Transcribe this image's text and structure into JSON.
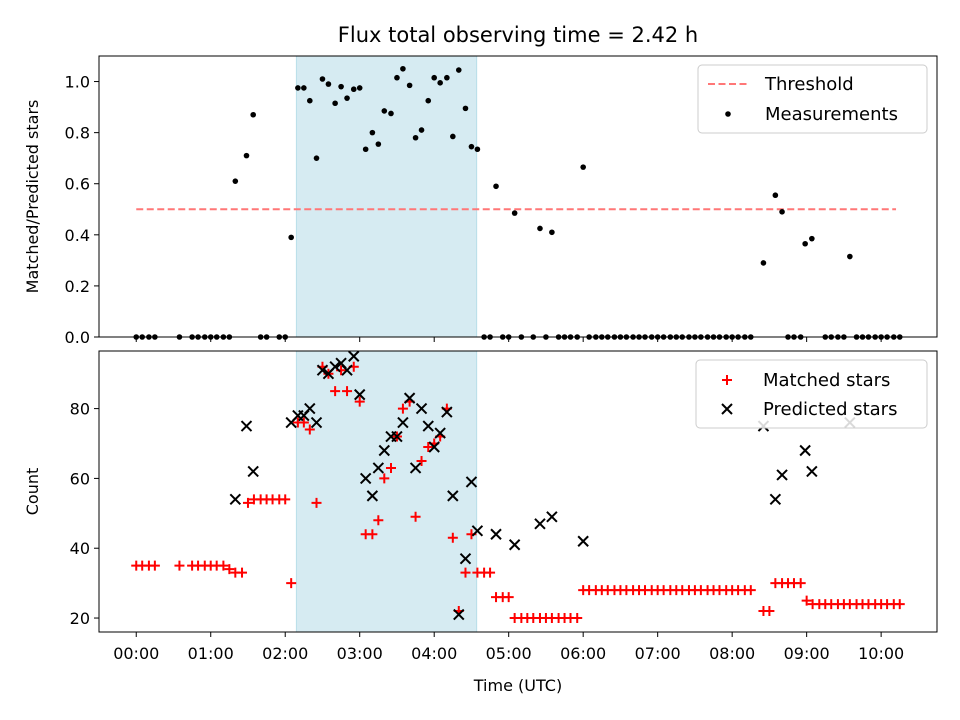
{
  "title": "Flux total observing time = 2.42 h",
  "chart_data": [
    {
      "type": "scatter",
      "name": "ratio",
      "ylabel": "Matched/Predicted stars",
      "xlim": [
        -0.5,
        10.75
      ],
      "ylim": [
        0,
        1.1
      ],
      "yticks": [
        0.0,
        0.2,
        0.4,
        0.6,
        0.8,
        1.0
      ],
      "ytick_labels": [
        "0.0",
        "0.2",
        "0.4",
        "0.6",
        "0.8",
        "1.0"
      ],
      "observing_window": [
        2.15,
        4.57
      ],
      "threshold": {
        "label": "Threshold",
        "value": 0.5,
        "x_range": [
          0.0,
          10.2
        ],
        "color": "#ff7777"
      },
      "measurements": {
        "label": "Measurements",
        "color": "#000000",
        "points": [
          [
            0.0,
            0
          ],
          [
            0.08,
            0
          ],
          [
            0.17,
            0
          ],
          [
            0.25,
            0
          ],
          [
            0.58,
            0
          ],
          [
            0.75,
            0
          ],
          [
            0.83,
            0
          ],
          [
            0.92,
            0
          ],
          [
            1.0,
            0
          ],
          [
            1.08,
            0
          ],
          [
            1.17,
            0
          ],
          [
            1.25,
            0
          ],
          [
            1.33,
            0.61
          ],
          [
            1.48,
            0.71
          ],
          [
            1.57,
            0.87
          ],
          [
            1.67,
            0
          ],
          [
            1.75,
            0
          ],
          [
            1.92,
            0
          ],
          [
            2.0,
            0
          ],
          [
            2.08,
            0.39
          ],
          [
            2.17,
            0.975
          ],
          [
            2.25,
            0.975
          ],
          [
            2.33,
            0.925
          ],
          [
            2.42,
            0.7
          ],
          [
            2.5,
            1.01
          ],
          [
            2.58,
            0.99
          ],
          [
            2.67,
            0.915
          ],
          [
            2.75,
            0.98
          ],
          [
            2.83,
            0.935
          ],
          [
            2.92,
            0.97
          ],
          [
            3.0,
            0.975
          ],
          [
            3.08,
            0.735
          ],
          [
            3.17,
            0.8
          ],
          [
            3.25,
            0.755
          ],
          [
            3.33,
            0.885
          ],
          [
            3.42,
            0.875
          ],
          [
            3.5,
            1.015
          ],
          [
            3.58,
            1.05
          ],
          [
            3.67,
            0.985
          ],
          [
            3.75,
            0.78
          ],
          [
            3.83,
            0.81
          ],
          [
            3.92,
            0.925
          ],
          [
            4.0,
            1.015
          ],
          [
            4.08,
            0.995
          ],
          [
            4.17,
            1.015
          ],
          [
            4.25,
            0.785
          ],
          [
            4.33,
            1.045
          ],
          [
            4.42,
            0.895
          ],
          [
            4.5,
            0.745
          ],
          [
            4.58,
            0.735
          ],
          [
            4.67,
            0
          ],
          [
            4.75,
            0
          ],
          [
            4.83,
            0.59
          ],
          [
            4.92,
            0
          ],
          [
            5.0,
            0
          ],
          [
            5.08,
            0.485
          ],
          [
            5.17,
            0
          ],
          [
            5.33,
            0
          ],
          [
            5.42,
            0.425
          ],
          [
            5.5,
            0
          ],
          [
            5.58,
            0.41
          ],
          [
            5.67,
            0
          ],
          [
            5.75,
            0
          ],
          [
            5.83,
            0
          ],
          [
            5.92,
            0
          ],
          [
            6.0,
            0.665
          ],
          [
            6.08,
            0
          ],
          [
            6.17,
            0
          ],
          [
            6.25,
            0
          ],
          [
            6.33,
            0
          ],
          [
            6.42,
            0
          ],
          [
            6.5,
            0
          ],
          [
            6.58,
            0
          ],
          [
            6.67,
            0
          ],
          [
            6.75,
            0
          ],
          [
            6.83,
            0
          ],
          [
            6.92,
            0
          ],
          [
            7.0,
            0
          ],
          [
            7.08,
            0
          ],
          [
            7.17,
            0
          ],
          [
            7.25,
            0
          ],
          [
            7.33,
            0
          ],
          [
            7.42,
            0
          ],
          [
            7.5,
            0
          ],
          [
            7.58,
            0
          ],
          [
            7.67,
            0
          ],
          [
            7.75,
            0
          ],
          [
            7.83,
            0
          ],
          [
            7.92,
            0
          ],
          [
            8.0,
            0
          ],
          [
            8.08,
            0
          ],
          [
            8.17,
            0
          ],
          [
            8.25,
            0
          ],
          [
            8.42,
            0.29
          ],
          [
            8.58,
            0.555
          ],
          [
            8.67,
            0.49
          ],
          [
            8.75,
            0
          ],
          [
            8.83,
            0
          ],
          [
            8.92,
            0
          ],
          [
            8.98,
            0.365
          ],
          [
            9.07,
            0.385
          ],
          [
            9.25,
            0
          ],
          [
            9.33,
            0
          ],
          [
            9.42,
            0
          ],
          [
            9.5,
            0
          ],
          [
            9.58,
            0.315
          ],
          [
            9.67,
            0
          ],
          [
            9.75,
            0
          ],
          [
            9.83,
            0
          ],
          [
            9.92,
            0
          ],
          [
            10.0,
            0
          ],
          [
            10.08,
            0
          ],
          [
            10.17,
            0
          ],
          [
            10.25,
            0
          ]
        ]
      }
    },
    {
      "type": "scatter",
      "name": "counts",
      "xlabel": "Time (UTC)",
      "ylabel": "Count",
      "xlim": [
        -0.5,
        10.75
      ],
      "ylim": [
        16,
        96.5
      ],
      "yticks": [
        20,
        40,
        60,
        80
      ],
      "ytick_labels": [
        "20",
        "40",
        "60",
        "80"
      ],
      "xticks": [
        0,
        1,
        2,
        3,
        4,
        5,
        6,
        7,
        8,
        9,
        10
      ],
      "xtick_labels": [
        "00:00",
        "01:00",
        "02:00",
        "03:00",
        "04:00",
        "05:00",
        "06:00",
        "07:00",
        "08:00",
        "09:00",
        "10:00"
      ],
      "observing_window": [
        2.15,
        4.57
      ],
      "series": [
        {
          "name": "Matched stars",
          "marker": "+",
          "color": "#ff0000",
          "points": [
            [
              0.0,
              35
            ],
            [
              0.08,
              35
            ],
            [
              0.17,
              35
            ],
            [
              0.25,
              35
            ],
            [
              0.58,
              35
            ],
            [
              0.75,
              35
            ],
            [
              0.83,
              35
            ],
            [
              0.92,
              35
            ],
            [
              1.0,
              35
            ],
            [
              1.08,
              35
            ],
            [
              1.17,
              35
            ],
            [
              1.25,
              34
            ],
            [
              1.33,
              33
            ],
            [
              1.42,
              33
            ],
            [
              1.5,
              53
            ],
            [
              1.58,
              54
            ],
            [
              1.67,
              54
            ],
            [
              1.75,
              54
            ],
            [
              1.83,
              54
            ],
            [
              1.92,
              54
            ],
            [
              2.0,
              54
            ],
            [
              2.08,
              30
            ],
            [
              2.17,
              76
            ],
            [
              2.25,
              76
            ],
            [
              2.33,
              74
            ],
            [
              2.42,
              53
            ],
            [
              2.5,
              92
            ],
            [
              2.58,
              90
            ],
            [
              2.67,
              85
            ],
            [
              2.75,
              91
            ],
            [
              2.83,
              85
            ],
            [
              2.92,
              92
            ],
            [
              3.0,
              82
            ],
            [
              3.08,
              44
            ],
            [
              3.17,
              44
            ],
            [
              3.25,
              48
            ],
            [
              3.33,
              60
            ],
            [
              3.42,
              63
            ],
            [
              3.5,
              72
            ],
            [
              3.58,
              80
            ],
            [
              3.67,
              82
            ],
            [
              3.75,
              49
            ],
            [
              3.83,
              65
            ],
            [
              3.92,
              69
            ],
            [
              4.0,
              70
            ],
            [
              4.08,
              72
            ],
            [
              4.17,
              80
            ],
            [
              4.25,
              43
            ],
            [
              4.33,
              22
            ],
            [
              4.42,
              33
            ],
            [
              4.5,
              44
            ],
            [
              4.58,
              33
            ],
            [
              4.67,
              33
            ],
            [
              4.75,
              33
            ],
            [
              4.83,
              26
            ],
            [
              4.92,
              26
            ],
            [
              5.0,
              26
            ],
            [
              5.08,
              20
            ],
            [
              5.17,
              20
            ],
            [
              5.25,
              20
            ],
            [
              5.33,
              20
            ],
            [
              5.42,
              20
            ],
            [
              5.5,
              20
            ],
            [
              5.58,
              20
            ],
            [
              5.67,
              20
            ],
            [
              5.75,
              20
            ],
            [
              5.83,
              20
            ],
            [
              5.92,
              20
            ],
            [
              6.0,
              28
            ],
            [
              6.08,
              28
            ],
            [
              6.17,
              28
            ],
            [
              6.25,
              28
            ],
            [
              6.33,
              28
            ],
            [
              6.42,
              28
            ],
            [
              6.5,
              28
            ],
            [
              6.58,
              28
            ],
            [
              6.67,
              28
            ],
            [
              6.75,
              28
            ],
            [
              6.83,
              28
            ],
            [
              6.92,
              28
            ],
            [
              7.0,
              28
            ],
            [
              7.08,
              28
            ],
            [
              7.17,
              28
            ],
            [
              7.25,
              28
            ],
            [
              7.33,
              28
            ],
            [
              7.42,
              28
            ],
            [
              7.5,
              28
            ],
            [
              7.58,
              28
            ],
            [
              7.67,
              28
            ],
            [
              7.75,
              28
            ],
            [
              7.83,
              28
            ],
            [
              7.92,
              28
            ],
            [
              8.0,
              28
            ],
            [
              8.08,
              28
            ],
            [
              8.17,
              28
            ],
            [
              8.25,
              28
            ],
            [
              8.42,
              22
            ],
            [
              8.5,
              22
            ],
            [
              8.58,
              30
            ],
            [
              8.67,
              30
            ],
            [
              8.75,
              30
            ],
            [
              8.83,
              30
            ],
            [
              8.92,
              30
            ],
            [
              9.0,
              25
            ],
            [
              9.08,
              24
            ],
            [
              9.17,
              24
            ],
            [
              9.25,
              24
            ],
            [
              9.33,
              24
            ],
            [
              9.42,
              24
            ],
            [
              9.5,
              24
            ],
            [
              9.58,
              24
            ],
            [
              9.67,
              24
            ],
            [
              9.75,
              24
            ],
            [
              9.83,
              24
            ],
            [
              9.92,
              24
            ],
            [
              10.0,
              24
            ],
            [
              10.08,
              24
            ],
            [
              10.17,
              24
            ],
            [
              10.25,
              24
            ]
          ]
        },
        {
          "name": "Predicted stars",
          "marker": "x",
          "color": "#000000",
          "points": [
            [
              1.33,
              54
            ],
            [
              1.48,
              75
            ],
            [
              1.57,
              62
            ],
            [
              2.08,
              76
            ],
            [
              2.17,
              78
            ],
            [
              2.25,
              78
            ],
            [
              2.33,
              80
            ],
            [
              2.42,
              76
            ],
            [
              2.5,
              91
            ],
            [
              2.58,
              90
            ],
            [
              2.67,
              92
            ],
            [
              2.75,
              93
            ],
            [
              2.83,
              91
            ],
            [
              2.92,
              95
            ],
            [
              3.0,
              84
            ],
            [
              3.08,
              60
            ],
            [
              3.17,
              55
            ],
            [
              3.25,
              63
            ],
            [
              3.33,
              68
            ],
            [
              3.42,
              72
            ],
            [
              3.5,
              72
            ],
            [
              3.58,
              76
            ],
            [
              3.67,
              83
            ],
            [
              3.75,
              63
            ],
            [
              3.83,
              80
            ],
            [
              3.92,
              75
            ],
            [
              4.0,
              69
            ],
            [
              4.08,
              73
            ],
            [
              4.17,
              79
            ],
            [
              4.25,
              55
            ],
            [
              4.33,
              21
            ],
            [
              4.42,
              37
            ],
            [
              4.5,
              59
            ],
            [
              4.58,
              45
            ],
            [
              4.83,
              44
            ],
            [
              5.08,
              41
            ],
            [
              5.42,
              47
            ],
            [
              5.58,
              49
            ],
            [
              6.0,
              42
            ],
            [
              8.42,
              75
            ],
            [
              8.58,
              54
            ],
            [
              8.67,
              61
            ],
            [
              8.98,
              68
            ],
            [
              9.07,
              62
            ],
            [
              9.58,
              76
            ]
          ]
        }
      ]
    }
  ]
}
